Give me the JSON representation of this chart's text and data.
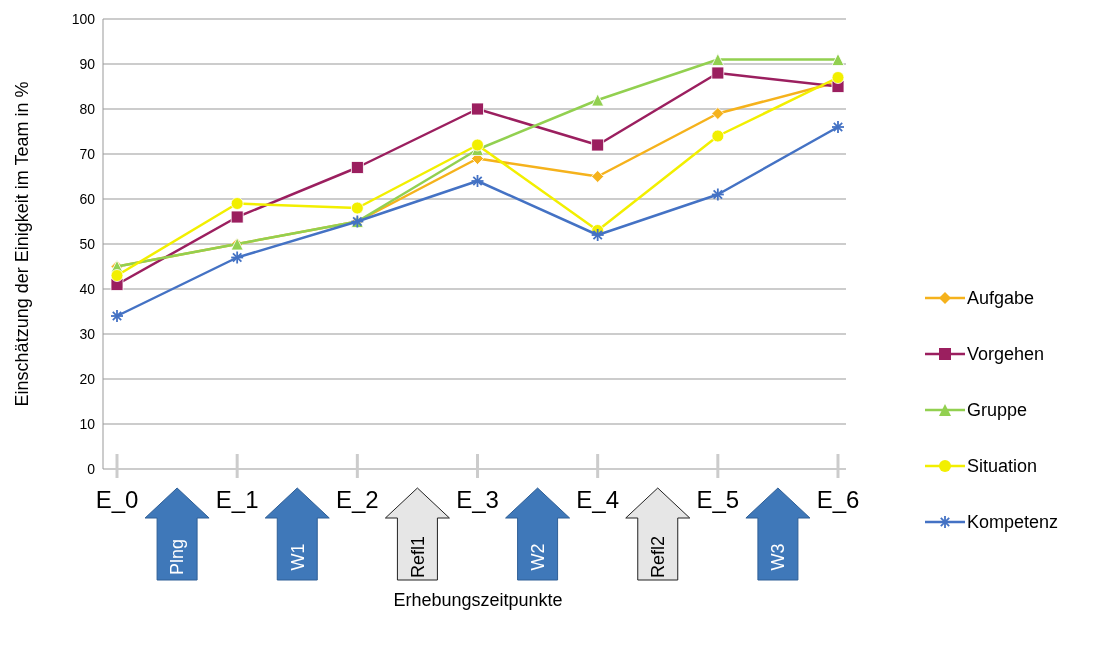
{
  "chart_data": {
    "type": "line",
    "xlabel": "Erhebungszeitpunkte",
    "ylabel": "Einschätzung der Einigkeit im Team in %",
    "categories": [
      "E_0",
      "E_1",
      "E_2",
      "E_3",
      "E_4",
      "E_5",
      "E_6"
    ],
    "series": [
      {
        "name": "Aufgabe",
        "color": "#f5b21c",
        "marker": "diamond",
        "values": [
          45,
          50,
          55,
          69,
          65,
          79,
          86
        ]
      },
      {
        "name": "Vorgehen",
        "color": "#9b1f5f",
        "marker": "square",
        "values": [
          41,
          56,
          67,
          80,
          72,
          88,
          85
        ]
      },
      {
        "name": "Gruppe",
        "color": "#92d050",
        "marker": "triangle",
        "values": [
          45,
          50,
          55,
          71,
          82,
          91,
          91
        ]
      },
      {
        "name": "Situation",
        "color": "#f2ef00",
        "marker": "circle",
        "values": [
          43,
          59,
          58,
          72,
          53,
          74,
          87
        ]
      },
      {
        "name": "Kompetenz",
        "color": "#4472c4",
        "marker": "cross",
        "values": [
          34,
          47,
          55,
          64,
          52,
          61,
          76
        ]
      }
    ],
    "ylim": [
      0,
      100
    ],
    "yticks": [
      0,
      10,
      20,
      30,
      40,
      50,
      60,
      70,
      80,
      90,
      100
    ],
    "grid": "y",
    "legend": "right",
    "annotations": [
      "Plng",
      "W1",
      "Refl1",
      "W2",
      "Refl2",
      "W3"
    ]
  }
}
